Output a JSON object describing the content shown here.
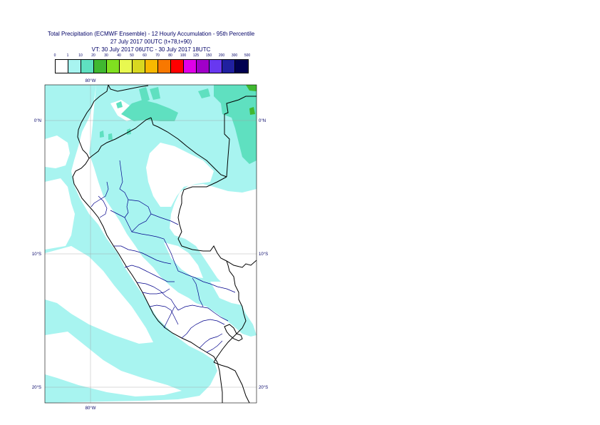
{
  "title": {
    "line1": "Total Precipitation (ECMWF Ensemble) - 12 Hourly Accumulation - 95th Percentile",
    "line2": "27 July 2017 00UTC (t+78,t+90)",
    "line3": "VT: 30 July 2017 06UTC - 30 July 2017 18UTC"
  },
  "legend": {
    "breaks": [
      "0",
      "1",
      "10",
      "20",
      "30",
      "40",
      "50",
      "60",
      "70",
      "80",
      "100",
      "125",
      "150",
      "200",
      "300",
      "500"
    ],
    "colors": [
      "#ffffff",
      "#a8f4f0",
      "#5fe0c0",
      "#40b830",
      "#80e020",
      "#e8f850",
      "#d8d820",
      "#f8b800",
      "#f87800",
      "#ff0000",
      "#e000e8",
      "#a000c8",
      "#6838f0",
      "#2020a0",
      "#000050"
    ]
  },
  "map": {
    "labels": {
      "lon_top": "80°W",
      "lon_bottom": "80°W",
      "lat_0_left": "0°N",
      "lat_0_right": "0°N",
      "lat_10_left": "10°S",
      "lat_10_right": "10°S",
      "lat_20_left": "20°S",
      "lat_20_right": "20°S"
    },
    "colors": {
      "low_precip": "#a8f4f0",
      "mid_precip": "#5fe0c0",
      "high_precip": "#40b830",
      "country_border": "#000000",
      "region_border": "#00008b",
      "grid": "#a0a0a0",
      "frame": "#000000"
    }
  }
}
